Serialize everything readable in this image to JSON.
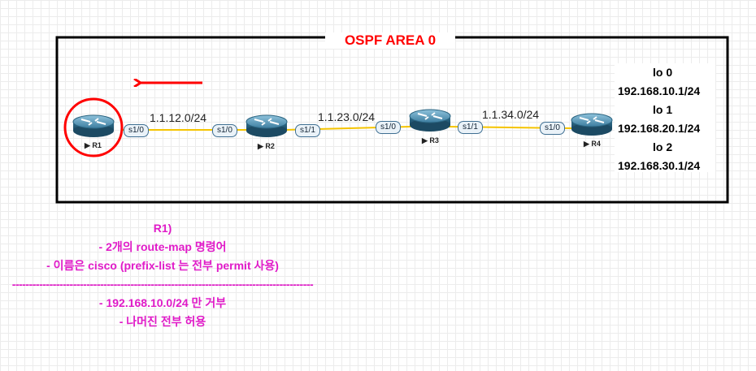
{
  "diagram": {
    "area_title": "OSPF AREA 0",
    "routers": [
      {
        "name": "R1"
      },
      {
        "name": "R2"
      },
      {
        "name": "R3"
      },
      {
        "name": "R4"
      }
    ],
    "links": [
      {
        "subnet": "1.1.12.0/24",
        "left_if": "s1/0",
        "right_if": "s1/0"
      },
      {
        "subnet": "1.1.23.0/24",
        "left_if": "s1/1",
        "right_if": "s1/0"
      },
      {
        "subnet": "1.1.34.0/24",
        "left_if": "s1/1",
        "right_if": "s1/0"
      }
    ],
    "loopbacks": [
      {
        "name": "lo 0",
        "address": "192.168.10.1/24"
      },
      {
        "name": "lo 1",
        "address": "192.168.20.1/24"
      },
      {
        "name": "lo 2",
        "address": "192.168.30.1/24"
      }
    ],
    "colors": {
      "frame": "#000000",
      "accent_red": "#ff0000",
      "link": "#f5c400",
      "router_body": "#2f6f8f",
      "notes": "#e01bc8"
    }
  },
  "notes": {
    "line1": "R1)",
    "line2": "- 2개의 route-map 명령어",
    "line3": "- 이름은 cisco (prefix-list 는 전부 permit 사용)",
    "separator": "-----------------------------------------------------------------------------------------",
    "line4": "- 192.168.10.0/24 만 거부",
    "line5": "- 나머진 전부 허용"
  }
}
